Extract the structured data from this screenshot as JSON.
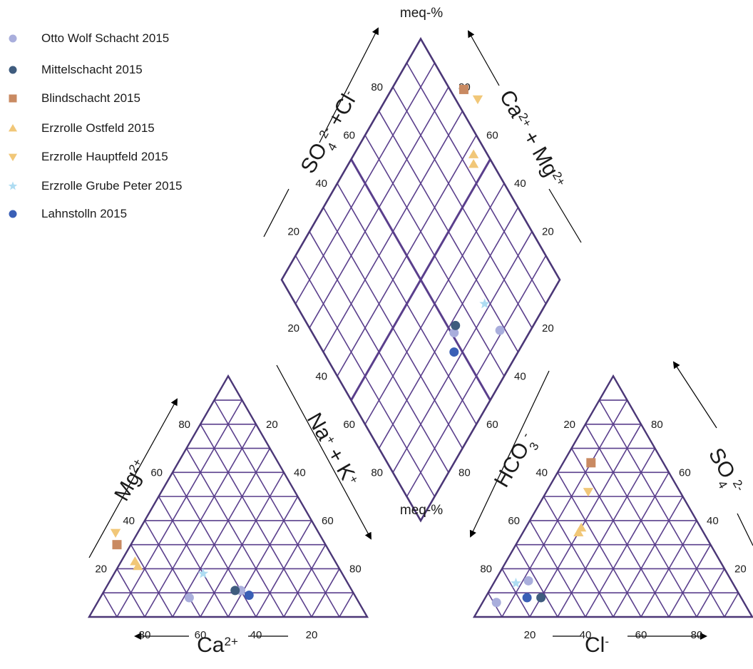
{
  "chart_data": {
    "type": "scatter",
    "subtype": "piper-diagram",
    "units_label": "meq-%",
    "colors": {
      "grid": "#5a3f8c",
      "border": "#4b3777",
      "text": "#1a1a1a"
    },
    "axes": {
      "cation_triangle": {
        "bottom_label": "Ca",
        "bottom_sup": "2+",
        "left_label": "Mg",
        "left_sup": "2+",
        "right_label_a": "Na",
        "right_sup_a": "+",
        "right_plus": " + ",
        "right_label_b": "K",
        "right_sup_b": "+",
        "ticks_bottom": [
          "80",
          "60",
          "40",
          "20"
        ],
        "ticks_left": [
          "20",
          "40",
          "60",
          "80"
        ],
        "ticks_right": [
          "20",
          "40",
          "60",
          "80"
        ]
      },
      "anion_triangle": {
        "bottom_label": "Cl",
        "bottom_sup": "-",
        "left_label": "HCO",
        "left_sub": "3",
        "left_sup": "-",
        "right_label": "SO",
        "right_sub": "4",
        "right_sup": "2-",
        "ticks_bottom": [
          "20",
          "40",
          "60",
          "80"
        ],
        "ticks_left": [
          "80",
          "60",
          "40",
          "20"
        ],
        "ticks_right": [
          "80",
          "60",
          "40",
          "20"
        ]
      },
      "diamond": {
        "upper_left_label_a": "SO",
        "upper_left_sub_a": "4",
        "upper_left_sup_a": "2-",
        "upper_left_plus": " +",
        "upper_left_label_b": "Cl",
        "upper_left_sup_b": "-",
        "upper_right_label_a": "Ca",
        "upper_right_sup_a": "2+",
        "upper_right_plus": " + ",
        "upper_right_label_b": "Mg",
        "upper_right_sup_b": "2+",
        "ticks_upper_left": [
          "80",
          "60",
          "40",
          "20"
        ],
        "ticks_upper_right": [
          "80",
          "60",
          "40",
          "20"
        ],
        "ticks_lower_left": [
          "20",
          "40",
          "60",
          "80"
        ],
        "ticks_lower_right": [
          "20",
          "40",
          "60",
          "80"
        ]
      }
    },
    "legend_position": "top-left",
    "series": [
      {
        "name": "Otto Wolf Schacht 2015",
        "marker": "circle",
        "color": "#a9aedc",
        "samples": [
          {
            "Ca": 40,
            "Mg": 11,
            "Cl": 12,
            "SO4": 15
          },
          {
            "Ca": 60,
            "Mg": 8,
            "Cl": 5,
            "SO4": 6
          }
        ]
      },
      {
        "name": "Mittelschacht 2015",
        "marker": "circle",
        "color": "#3f5c7e",
        "samples": [
          {
            "Ca": 42,
            "Mg": 11,
            "Cl": 20,
            "SO4": 8
          }
        ]
      },
      {
        "name": "Blindschacht 2015",
        "marker": "square",
        "color": "#c98a62",
        "samples": [
          {
            "Ca": 75,
            "Mg": 30,
            "Cl": 10,
            "SO4": 64
          }
        ]
      },
      {
        "name": "Erzrolle Ostfeld 2015",
        "marker": "triangle-up",
        "color": "#f1c778",
        "samples": [
          {
            "Ca": 72,
            "Mg": 21,
            "Cl": 20,
            "SO4": 35
          },
          {
            "Ca": 72,
            "Mg": 23,
            "Cl": 20,
            "SO4": 37
          }
        ]
      },
      {
        "name": "Erzrolle Hauptfeld  2015",
        "marker": "triangle-down",
        "color": "#f1c778",
        "samples": [
          {
            "Ca": 73,
            "Mg": 35,
            "Cl": 15,
            "SO4": 52
          }
        ]
      },
      {
        "name": "Erzrolle Grube Peter 2015",
        "marker": "star",
        "color": "#aedcf2",
        "samples": [
          {
            "Ca": 50,
            "Mg": 18,
            "Cl": 8,
            "SO4": 14
          }
        ]
      },
      {
        "name": "Lahnstolln 2015",
        "marker": "circle",
        "color": "#3a5fb6",
        "samples": [
          {
            "Ca": 38,
            "Mg": 9,
            "Cl": 15,
            "SO4": 8
          }
        ]
      }
    ]
  }
}
